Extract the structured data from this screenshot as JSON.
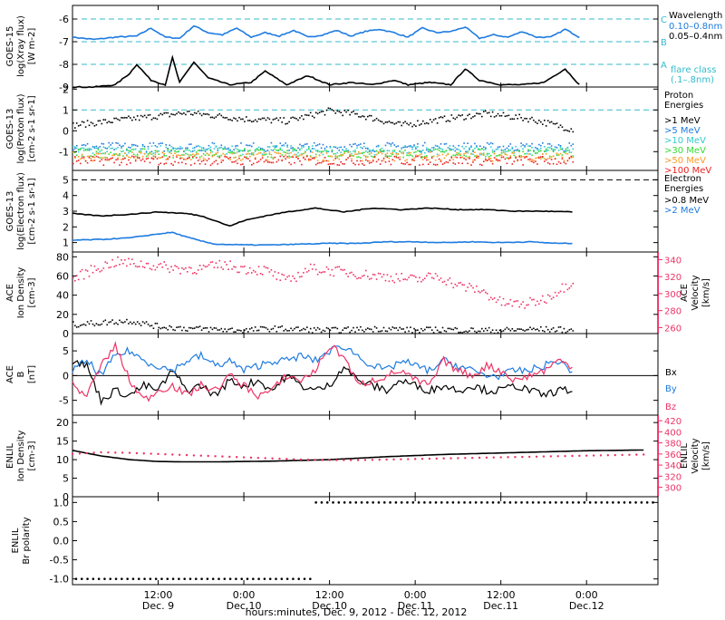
{
  "x_axis": {
    "title": "hours:minutes, Dec. 9, 2012 - Dec. 12, 2012",
    "ticks": [
      {
        "time": "12:00",
        "date": "Dec. 9"
      },
      {
        "time": "0:00",
        "date": "Dec.10"
      },
      {
        "time": "12:00",
        "date": "Dec.10"
      },
      {
        "time": "0:00",
        "date": "Dec.11"
      },
      {
        "time": "12:00",
        "date": "Dec.11"
      },
      {
        "time": "0:00",
        "date": "Dec.12"
      }
    ],
    "range_hours": [
      0,
      82
    ]
  },
  "colors": {
    "black": "#000000",
    "blue": "#1e7be0",
    "cyan": "#33cccc",
    "pink": "#ee3366",
    "green": "#33dd33",
    "yellow": "#dddd22",
    "orange": "#ff9922",
    "red": "#ee2222",
    "lightcyan": "#33bbcc"
  },
  "chart_data": [
    {
      "type": "line",
      "id": "xray",
      "ylabel_lines": [
        "GOES-15",
        "log(Xray flux)",
        "[W m-2]"
      ],
      "ylim": [
        -9,
        -5.4
      ],
      "yticks": [
        -9,
        -8,
        -7,
        -6
      ],
      "ytick_labels": [
        "-9",
        "-8",
        "-7",
        "-6"
      ],
      "dashed_levels": [
        -6,
        -7,
        -8
      ],
      "class_letters": [
        "C",
        "B",
        "A"
      ],
      "right_legend": {
        "title": "Wavelength",
        "entries": [
          {
            "label": "0.10–0.8nm",
            "color": "blue"
          },
          {
            "label": "0.05–0.4nm",
            "color": "black"
          }
        ],
        "note_lines": [
          "flare class",
          "(.1–.8nm)"
        ]
      },
      "series": [
        {
          "label_ref": "0.10–0.8nm",
          "color": "blue",
          "style": "line",
          "x": [
            0,
            3,
            6,
            9,
            11,
            13,
            15,
            17,
            19,
            21,
            23,
            25,
            27,
            29,
            31,
            33,
            35,
            37,
            39,
            41,
            43,
            45,
            47,
            49,
            51,
            53,
            55,
            57,
            59,
            61,
            63,
            65,
            67,
            69,
            71
          ],
          "y": [
            -6.8,
            -6.9,
            -6.8,
            -6.75,
            -6.4,
            -6.8,
            -6.85,
            -6.3,
            -6.6,
            -6.7,
            -6.4,
            -6.8,
            -6.6,
            -6.75,
            -6.5,
            -6.8,
            -6.7,
            -6.5,
            -6.75,
            -6.55,
            -6.45,
            -6.6,
            -6.8,
            -6.4,
            -6.6,
            -6.55,
            -6.35,
            -6.85,
            -6.7,
            -6.8,
            -6.55,
            -6.8,
            -6.8,
            -6.45,
            -6.8
          ]
        },
        {
          "label_ref": "0.05–0.4nm",
          "color": "black",
          "style": "dots",
          "x": [
            0,
            3,
            6,
            8,
            9,
            11,
            13,
            14,
            15,
            17,
            19,
            22,
            25,
            27,
            30,
            33,
            36,
            39,
            42,
            45,
            47,
            50,
            53,
            55,
            57,
            60,
            63,
            66,
            69,
            71
          ],
          "y": [
            -9,
            -9,
            -8.9,
            -8.4,
            -8.0,
            -8.7,
            -8.9,
            -7.7,
            -8.8,
            -7.9,
            -8.6,
            -8.9,
            -8.8,
            -8.3,
            -8.9,
            -8.5,
            -8.9,
            -8.8,
            -8.9,
            -8.7,
            -8.9,
            -8.8,
            -8.9,
            -8.2,
            -8.7,
            -8.9,
            -8.9,
            -8.8,
            -8.2,
            -8.9
          ]
        }
      ]
    },
    {
      "type": "scatter",
      "id": "proton",
      "ylabel_lines": [
        "GOES-13",
        "log(Proton flux)",
        "[cm-2 s-1 sr-1]"
      ],
      "ylim": [
        -1.9,
        2.1
      ],
      "yticks": [
        -1,
        0,
        1,
        2
      ],
      "ytick_labels": [
        "-1",
        "0",
        "1",
        "2"
      ],
      "dashed_levels": [
        1
      ],
      "right_legend": {
        "title_lines": [
          "Proton",
          "Energies"
        ]
      },
      "series": [
        {
          "name": ">1 MeV",
          "color": "black",
          "x": [
            0,
            8,
            16,
            24,
            30,
            36,
            40,
            46,
            52,
            58,
            64,
            70
          ],
          "y": [
            0.3,
            0.6,
            0.9,
            0.6,
            0.5,
            1.0,
            0.8,
            0.3,
            0.6,
            0.85,
            0.6,
            0.1
          ]
        },
        {
          "name": ">5 MeV",
          "color": "blue",
          "x": [
            0,
            70
          ],
          "y": [
            -0.75,
            -0.75
          ]
        },
        {
          "name": ">10 MeV",
          "color": "cyan",
          "x": [
            0,
            70
          ],
          "y": [
            -0.9,
            -0.9
          ]
        },
        {
          "name": ">30 MeV",
          "color": "green",
          "x": [
            0,
            70
          ],
          "y": [
            -1.05,
            -1.05
          ]
        },
        {
          "name": ">50 MeV",
          "color": "orange",
          "x": [
            0,
            70
          ],
          "y": [
            -1.2,
            -1.2
          ]
        },
        {
          "name": ">100 MeV",
          "color": "red",
          "x": [
            0,
            70
          ],
          "y": [
            -1.4,
            -1.4
          ]
        }
      ]
    },
    {
      "type": "line",
      "id": "electron",
      "ylabel_lines": [
        "GOES-13",
        "log(Electron flux)",
        "[cm-2 s-1 sr-1]"
      ],
      "ylim": [
        0.4,
        5.6
      ],
      "yticks": [
        1,
        2,
        3,
        4,
        5
      ],
      "ytick_labels": [
        "1",
        "2",
        "3",
        "4",
        "5"
      ],
      "dashed_levels": [
        5
      ],
      "right_legend": {
        "title_lines": [
          "Electron",
          "Energies"
        ]
      },
      "series": [
        {
          "name": ">0.8 MeV",
          "color": "black",
          "x": [
            0,
            4,
            8,
            12,
            16,
            18,
            20,
            22,
            24,
            27,
            30,
            34,
            38,
            42,
            46,
            50,
            54,
            58,
            62,
            66,
            70
          ],
          "y": [
            2.85,
            2.7,
            2.8,
            2.95,
            2.85,
            2.7,
            2.4,
            2.05,
            2.4,
            2.7,
            2.95,
            3.2,
            2.95,
            3.2,
            3.1,
            3.2,
            3.1,
            3.1,
            3.0,
            3.0,
            2.95
          ]
        },
        {
          "name": ">2 MeV",
          "color": "blue",
          "x": [
            0,
            4,
            8,
            12,
            14,
            16,
            18,
            20,
            24,
            28,
            32,
            36,
            40,
            44,
            48,
            52,
            56,
            60,
            64,
            68,
            70
          ],
          "y": [
            1.15,
            1.2,
            1.3,
            1.55,
            1.65,
            1.35,
            1.1,
            0.9,
            0.85,
            0.85,
            0.9,
            0.95,
            0.95,
            1.05,
            1.05,
            1.0,
            1.05,
            1.0,
            1.05,
            0.95,
            0.95
          ]
        }
      ]
    },
    {
      "type": "scatter",
      "id": "ace_plasma",
      "ylabel_lines": [
        "ACE",
        "Ion Density",
        "[cm-3]"
      ],
      "ylim": [
        0,
        85
      ],
      "yticks": [
        0,
        20,
        40,
        60,
        80
      ],
      "ytick_labels": [
        "0",
        "20",
        "40",
        "60",
        "80"
      ],
      "right_axis": {
        "label_lines": [
          "ACE",
          "Velocity",
          "[km/s]"
        ],
        "ylim": [
          253,
          349
        ],
        "yticks": [
          260,
          280,
          300,
          320,
          340
        ],
        "ytick_labels": [
          "260",
          "280",
          "300",
          "320",
          "340"
        ],
        "color": "pink"
      },
      "series": [
        {
          "name": "Ion Density",
          "color": "black",
          "x": [
            0,
            4,
            8,
            12,
            16,
            20,
            24,
            28,
            32,
            36,
            40,
            44,
            48,
            52,
            56,
            60,
            64,
            68,
            70
          ],
          "y": [
            10,
            12,
            14,
            8,
            6,
            5,
            4,
            6,
            5,
            4,
            5,
            6,
            4,
            5,
            4,
            4,
            5,
            5,
            4
          ]
        },
        {
          "name": "Velocity",
          "color": "pink",
          "axis": "right",
          "x": [
            0,
            3,
            6,
            9,
            12,
            15,
            18,
            21,
            24,
            27,
            30,
            33,
            36,
            39,
            42,
            45,
            48,
            51,
            54,
            57,
            60,
            63,
            66,
            68,
            70
          ],
          "y": [
            318,
            330,
            338,
            336,
            333,
            330,
            330,
            335,
            330,
            328,
            315,
            330,
            328,
            325,
            322,
            320,
            317,
            322,
            310,
            305,
            290,
            288,
            294,
            305,
            315
          ]
        }
      ]
    },
    {
      "type": "line",
      "id": "ace_mag",
      "ylabel_lines": [
        "ACE",
        "B",
        "[nT]"
      ],
      "ylim": [
        -8,
        8.5
      ],
      "yticks": [
        -5,
        0,
        5
      ],
      "ytick_labels": [
        "-5",
        "0",
        "5"
      ],
      "zero_line": true,
      "series": [
        {
          "name": "Bx",
          "color": "black",
          "x": [
            0,
            2,
            4,
            6,
            8,
            10,
            12,
            14,
            16,
            18,
            20,
            22,
            24,
            26,
            28,
            30,
            32,
            34,
            36,
            38,
            40,
            42,
            44,
            46,
            48,
            50,
            52,
            54,
            56,
            58,
            60,
            62,
            64,
            66,
            68,
            70
          ],
          "y": [
            3,
            2,
            -5,
            -3,
            -4,
            -2,
            -3,
            1,
            -3,
            -2,
            -4,
            -1,
            -2,
            -1,
            -3,
            0,
            -2,
            -3,
            -2,
            2,
            -1,
            -2,
            -3,
            -1,
            -2,
            -3,
            -2,
            -3,
            -2,
            -3,
            -3,
            -2,
            -3,
            -4,
            -3,
            -3
          ]
        },
        {
          "name": "By",
          "color": "blue",
          "x": [
            0,
            2,
            4,
            6,
            8,
            10,
            12,
            14,
            16,
            18,
            20,
            22,
            24,
            26,
            28,
            30,
            32,
            34,
            36,
            38,
            40,
            42,
            44,
            46,
            48,
            50,
            52,
            54,
            56,
            58,
            60,
            62,
            64,
            66,
            68,
            70
          ],
          "y": [
            1,
            3,
            0,
            4,
            5,
            3,
            2,
            1,
            3,
            4,
            2,
            3,
            1,
            2,
            3,
            3,
            4,
            3,
            5,
            6,
            4,
            2,
            1,
            3,
            2,
            1,
            3,
            2,
            1,
            0,
            0,
            1,
            1,
            2,
            3,
            1
          ]
        },
        {
          "name": "Bz",
          "color": "pink",
          "x": [
            0,
            2,
            4,
            6,
            8,
            10,
            12,
            14,
            16,
            18,
            20,
            22,
            24,
            26,
            28,
            30,
            32,
            34,
            36,
            38,
            40,
            42,
            44,
            46,
            48,
            50,
            52,
            54,
            56,
            58,
            60,
            62,
            64,
            66,
            68,
            70
          ],
          "y": [
            -2,
            -4,
            2,
            6,
            -1,
            -5,
            -3,
            -2,
            -4,
            -2,
            -3,
            0,
            -2,
            -4,
            -3,
            0,
            -1,
            1,
            6,
            4,
            -2,
            -1,
            0,
            1,
            -1,
            -2,
            3,
            1,
            0,
            2,
            1,
            -1,
            0,
            1,
            3,
            2
          ]
        }
      ]
    },
    {
      "type": "line",
      "id": "enlil_plasma",
      "ylabel_lines": [
        "ENLIL",
        "Ion Density",
        "[cm-3]"
      ],
      "ylim": [
        0,
        22
      ],
      "yticks": [
        0,
        5,
        10,
        15,
        20
      ],
      "ytick_labels": [
        "0",
        "5",
        "10",
        "15",
        "20"
      ],
      "right_axis": {
        "label_lines": [
          "ENLIL",
          "Velocity",
          "[km/s]"
        ],
        "ylim": [
          283,
          430
        ],
        "yticks": [
          300,
          320,
          340,
          360,
          380,
          400,
          420
        ],
        "ytick_labels": [
          "300",
          "320",
          "340",
          "360",
          "380",
          "400",
          "420"
        ],
        "color": "pink"
      },
      "series": [
        {
          "name": "Ion Density",
          "color": "black",
          "x": [
            0,
            4,
            8,
            12,
            16,
            20,
            24,
            28,
            32,
            36,
            40,
            44,
            48,
            52,
            56,
            60,
            64,
            68,
            72,
            76,
            80
          ],
          "y": [
            12.5,
            11,
            10,
            9.5,
            9.4,
            9.4,
            9.5,
            9.6,
            9.8,
            10,
            10.4,
            10.8,
            11.1,
            11.4,
            11.6,
            11.8,
            12,
            12.2,
            12.4,
            12.5,
            12.6
          ]
        },
        {
          "name": "Velocity",
          "color": "pink",
          "axis": "right",
          "x": [
            0,
            4,
            8,
            12,
            16,
            20,
            24,
            28,
            32,
            36,
            40,
            44,
            48,
            52,
            56,
            60,
            64,
            68,
            72,
            76,
            80
          ],
          "y": [
            360,
            363,
            362,
            360,
            358,
            356,
            354,
            352,
            350,
            349,
            349,
            350,
            351,
            352,
            353,
            354,
            355,
            356,
            357,
            358,
            359
          ]
        }
      ]
    },
    {
      "type": "line",
      "id": "enlil_polarity",
      "ylabel_lines": [
        "ENLIL",
        "Br polarity"
      ],
      "ylim": [
        -1.15,
        1.15
      ],
      "yticks": [
        -1.0,
        -0.5,
        0.0,
        0.5,
        1.0
      ],
      "ytick_labels": [
        "-1.0",
        "-0.5",
        "0.0",
        "0.5",
        "1.0"
      ],
      "series": [
        {
          "name": "Br polarity",
          "color": "black",
          "x": [
            0,
            33.5,
            33.6,
            82
          ],
          "y": [
            -1,
            -1,
            1,
            1
          ]
        }
      ]
    }
  ],
  "right_labels": {
    "bx": "Bx",
    "by": "By",
    "bz": "Bz"
  }
}
